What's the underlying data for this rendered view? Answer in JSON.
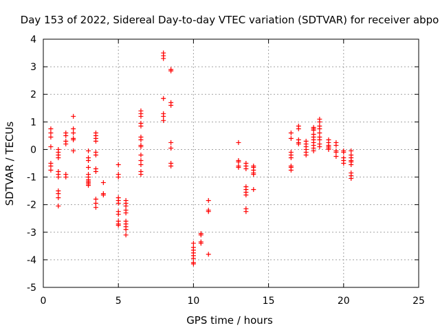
{
  "chart_data": {
    "type": "scatter",
    "title": "Day 153 of 2022, Sidereal Day-to-day VTEC variation (SDTVAR) for receiver abpo",
    "xlabel": "GPS time / hours",
    "ylabel": "SDTVAR / TECUs",
    "xlim": [
      0,
      25
    ],
    "ylim": [
      -5,
      4
    ],
    "xticks": [
      0,
      5,
      10,
      15,
      20,
      25
    ],
    "yticks": [
      -5,
      -4,
      -3,
      -2,
      -1,
      0,
      1,
      2,
      3,
      4
    ],
    "grid": true,
    "marker": "+",
    "color": "#ff0000",
    "series": [
      {
        "name": "SDTVAR",
        "points": [
          [
            0.5,
            0.75
          ],
          [
            0.5,
            0.6
          ],
          [
            0.5,
            0.45
          ],
          [
            0.5,
            0.1
          ],
          [
            0.5,
            -0.5
          ],
          [
            0.5,
            -0.6
          ],
          [
            0.5,
            -0.75
          ],
          [
            1.0,
            0.0
          ],
          [
            1.0,
            -0.1
          ],
          [
            1.0,
            -0.2
          ],
          [
            1.0,
            -0.3
          ],
          [
            1.0,
            -0.8
          ],
          [
            1.0,
            -0.9
          ],
          [
            1.0,
            -1.0
          ],
          [
            1.0,
            -1.5
          ],
          [
            1.0,
            -1.6
          ],
          [
            1.0,
            -1.75
          ],
          [
            1.0,
            -2.05
          ],
          [
            1.5,
            0.6
          ],
          [
            1.5,
            0.5
          ],
          [
            1.5,
            0.3
          ],
          [
            1.5,
            0.2
          ],
          [
            1.5,
            -0.9
          ],
          [
            1.5,
            -1.0
          ],
          [
            2.0,
            1.2
          ],
          [
            2.0,
            0.75
          ],
          [
            2.0,
            0.6
          ],
          [
            2.0,
            0.4
          ],
          [
            2.0,
            0.35
          ],
          [
            2.0,
            -0.05
          ],
          [
            3.0,
            -0.05
          ],
          [
            3.0,
            -0.3
          ],
          [
            3.0,
            -0.4
          ],
          [
            3.0,
            -0.65
          ],
          [
            3.0,
            -0.9
          ],
          [
            3.0,
            -1.0
          ],
          [
            3.0,
            -1.1
          ],
          [
            3.0,
            -1.15
          ],
          [
            3.0,
            -1.2
          ],
          [
            3.0,
            -1.25
          ],
          [
            3.0,
            -1.3
          ],
          [
            3.5,
            0.6
          ],
          [
            3.5,
            0.5
          ],
          [
            3.5,
            0.4
          ],
          [
            3.5,
            0.3
          ],
          [
            3.5,
            -0.1
          ],
          [
            3.5,
            -0.2
          ],
          [
            3.5,
            -0.7
          ],
          [
            3.5,
            -0.8
          ],
          [
            3.5,
            -1.8
          ],
          [
            3.5,
            -1.95
          ],
          [
            3.5,
            -2.1
          ],
          [
            4.0,
            -1.2
          ],
          [
            4.0,
            -1.6
          ],
          [
            4.0,
            -1.65
          ],
          [
            5.0,
            -0.55
          ],
          [
            5.0,
            -0.9
          ],
          [
            5.0,
            -1.0
          ],
          [
            5.0,
            -1.75
          ],
          [
            5.0,
            -1.85
          ],
          [
            5.0,
            -1.95
          ],
          [
            5.0,
            -2.25
          ],
          [
            5.0,
            -2.35
          ],
          [
            5.0,
            -2.6
          ],
          [
            5.0,
            -2.7
          ],
          [
            5.0,
            -2.75
          ],
          [
            5.5,
            -1.85
          ],
          [
            5.5,
            -1.95
          ],
          [
            5.5,
            -2.05
          ],
          [
            5.5,
            -2.2
          ],
          [
            5.5,
            -2.3
          ],
          [
            5.5,
            -2.6
          ],
          [
            5.5,
            -2.7
          ],
          [
            5.5,
            -2.8
          ],
          [
            5.5,
            -2.9
          ],
          [
            5.5,
            -3.1
          ],
          [
            6.5,
            1.4
          ],
          [
            6.5,
            1.3
          ],
          [
            6.5,
            1.2
          ],
          [
            6.5,
            0.95
          ],
          [
            6.5,
            0.85
          ],
          [
            6.5,
            0.45
          ],
          [
            6.5,
            0.35
          ],
          [
            6.5,
            0.15
          ],
          [
            6.5,
            0.1
          ],
          [
            6.5,
            -0.2
          ],
          [
            6.5,
            -0.4
          ],
          [
            6.5,
            -0.55
          ],
          [
            6.5,
            -0.8
          ],
          [
            6.5,
            -0.9
          ],
          [
            8.0,
            3.5
          ],
          [
            8.0,
            3.4
          ],
          [
            8.0,
            3.3
          ],
          [
            8.0,
            1.85
          ],
          [
            8.0,
            1.3
          ],
          [
            8.0,
            1.2
          ],
          [
            8.0,
            1.05
          ],
          [
            8.5,
            2.9
          ],
          [
            8.5,
            2.85
          ],
          [
            8.5,
            1.7
          ],
          [
            8.5,
            1.6
          ],
          [
            8.5,
            0.25
          ],
          [
            8.5,
            0.05
          ],
          [
            8.5,
            -0.5
          ],
          [
            8.5,
            -0.6
          ],
          [
            10.0,
            -3.4
          ],
          [
            10.0,
            -3.55
          ],
          [
            10.0,
            -3.65
          ],
          [
            10.0,
            -3.75
          ],
          [
            10.0,
            -3.85
          ],
          [
            10.0,
            -3.95
          ],
          [
            10.0,
            -4.1
          ],
          [
            10.0,
            -4.15
          ],
          [
            10.5,
            -3.05
          ],
          [
            10.5,
            -3.1
          ],
          [
            10.5,
            -3.35
          ],
          [
            10.5,
            -3.4
          ],
          [
            11.0,
            -1.85
          ],
          [
            11.0,
            -2.2
          ],
          [
            11.0,
            -2.25
          ],
          [
            11.0,
            -3.8
          ],
          [
            13.0,
            0.25
          ],
          [
            13.0,
            -0.4
          ],
          [
            13.0,
            -0.45
          ],
          [
            13.0,
            -0.6
          ],
          [
            13.0,
            -0.65
          ],
          [
            13.5,
            -0.5
          ],
          [
            13.5,
            -0.6
          ],
          [
            13.5,
            -0.7
          ],
          [
            13.5,
            -1.35
          ],
          [
            13.5,
            -1.45
          ],
          [
            13.5,
            -1.55
          ],
          [
            13.5,
            -1.65
          ],
          [
            13.5,
            -2.15
          ],
          [
            13.5,
            -2.25
          ],
          [
            14.0,
            -0.6
          ],
          [
            14.0,
            -0.65
          ],
          [
            14.0,
            -0.75
          ],
          [
            14.0,
            -0.85
          ],
          [
            14.0,
            -0.9
          ],
          [
            14.0,
            -1.45
          ],
          [
            16.5,
            0.6
          ],
          [
            16.5,
            0.4
          ],
          [
            16.5,
            -0.1
          ],
          [
            16.5,
            -0.2
          ],
          [
            16.5,
            -0.3
          ],
          [
            16.5,
            -0.6
          ],
          [
            16.5,
            -0.65
          ],
          [
            16.5,
            -0.75
          ],
          [
            17.0,
            0.85
          ],
          [
            17.0,
            0.75
          ],
          [
            17.0,
            0.35
          ],
          [
            17.0,
            0.25
          ],
          [
            17.0,
            0.2
          ],
          [
            17.5,
            0.3
          ],
          [
            17.5,
            0.2
          ],
          [
            17.5,
            0.1
          ],
          [
            17.5,
            0.0
          ],
          [
            17.5,
            -0.1
          ],
          [
            17.5,
            -0.2
          ],
          [
            18.0,
            0.8
          ],
          [
            18.0,
            0.75
          ],
          [
            18.0,
            0.7
          ],
          [
            18.0,
            0.55
          ],
          [
            18.0,
            0.45
          ],
          [
            18.0,
            0.35
          ],
          [
            18.0,
            0.25
          ],
          [
            18.0,
            0.15
          ],
          [
            18.0,
            0.05
          ],
          [
            18.0,
            -0.05
          ],
          [
            18.4,
            1.1
          ],
          [
            18.4,
            1.0
          ],
          [
            18.4,
            0.85
          ],
          [
            18.4,
            0.75
          ],
          [
            18.4,
            0.6
          ],
          [
            18.4,
            0.45
          ],
          [
            18.4,
            0.35
          ],
          [
            18.4,
            0.2
          ],
          [
            18.4,
            0.1
          ],
          [
            19.0,
            0.35
          ],
          [
            19.0,
            0.25
          ],
          [
            19.0,
            0.15
          ],
          [
            19.0,
            0.1
          ],
          [
            19.0,
            0.05
          ],
          [
            19.0,
            0.0
          ],
          [
            19.5,
            0.25
          ],
          [
            19.5,
            0.15
          ],
          [
            19.5,
            -0.05
          ],
          [
            19.5,
            -0.1
          ],
          [
            19.5,
            -0.25
          ],
          [
            20.0,
            -0.05
          ],
          [
            20.0,
            -0.1
          ],
          [
            20.0,
            -0.3
          ],
          [
            20.0,
            -0.4
          ],
          [
            20.0,
            -0.5
          ],
          [
            20.5,
            -0.05
          ],
          [
            20.5,
            -0.2
          ],
          [
            20.5,
            -0.3
          ],
          [
            20.5,
            -0.4
          ],
          [
            20.5,
            -0.45
          ],
          [
            20.5,
            -0.55
          ],
          [
            20.5,
            -0.85
          ],
          [
            20.5,
            -0.95
          ],
          [
            20.5,
            -1.05
          ]
        ]
      }
    ]
  }
}
